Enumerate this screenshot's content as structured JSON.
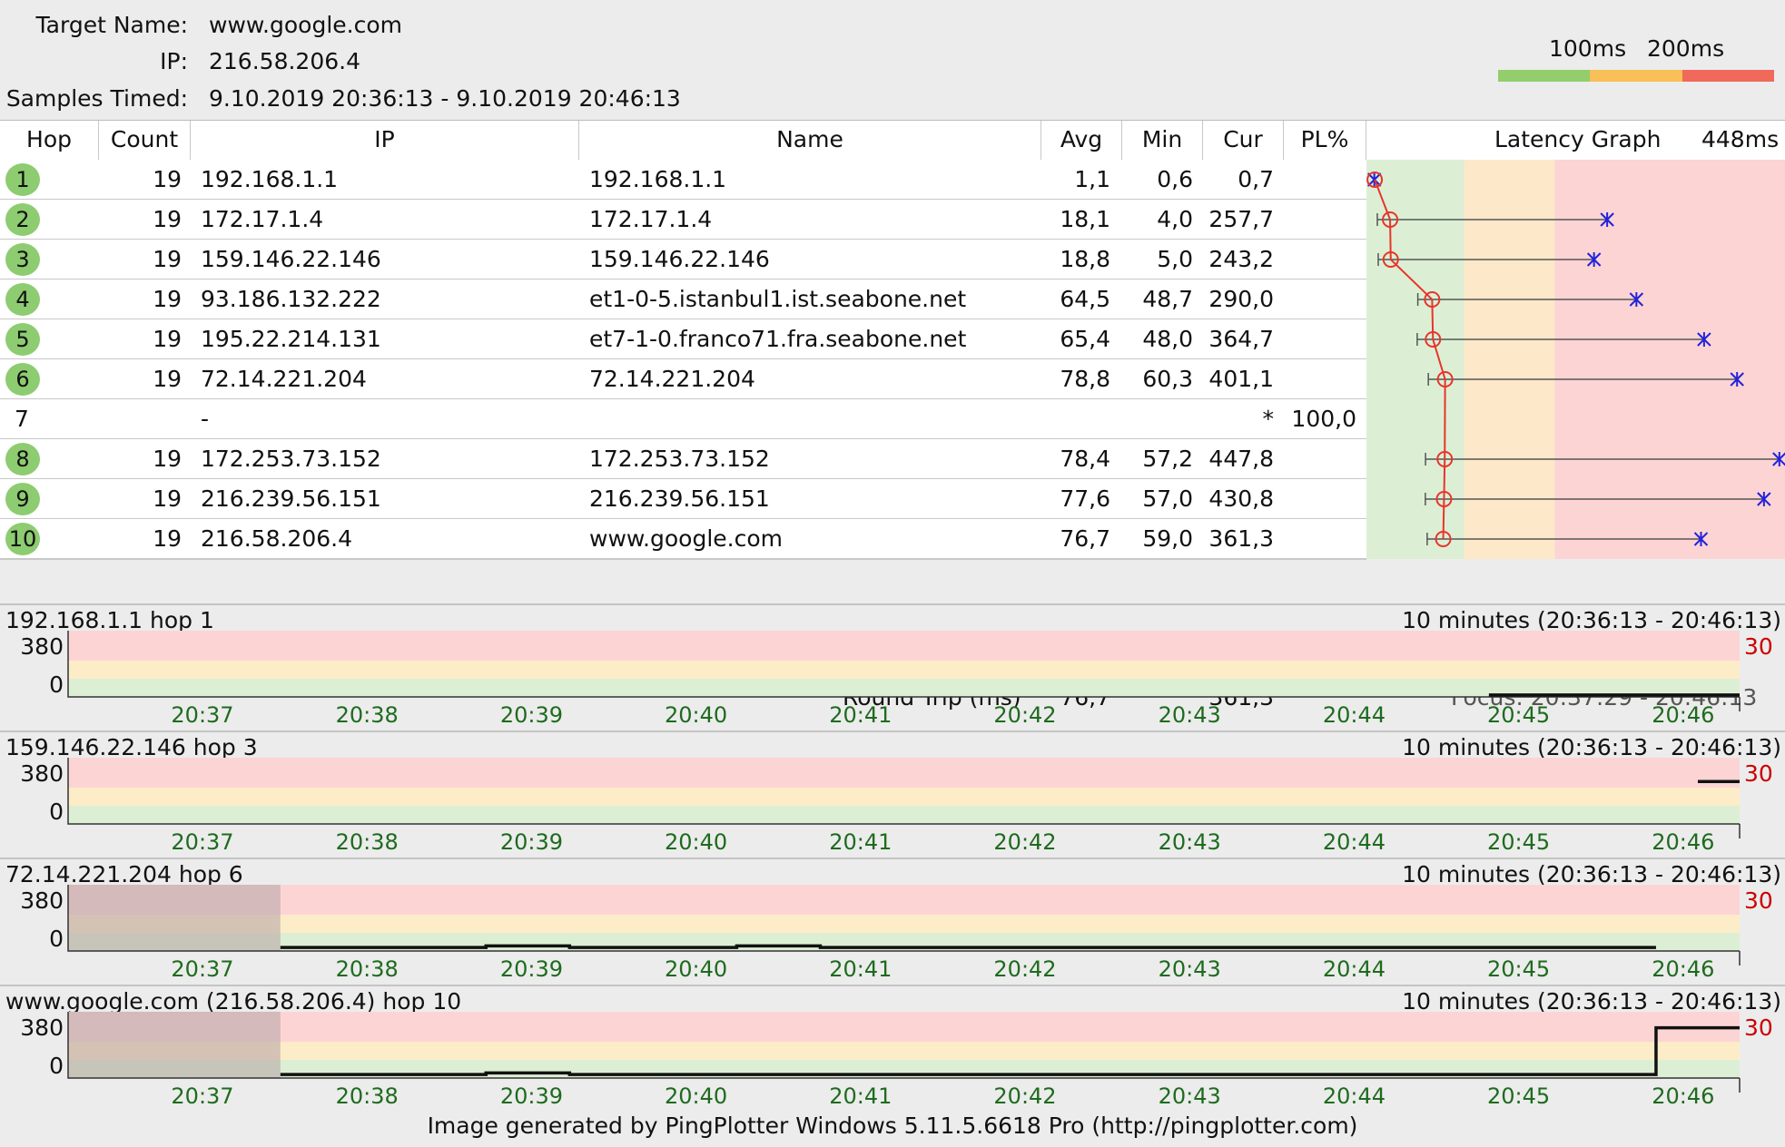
{
  "header": {
    "target_label": "Target Name:",
    "target_value": "www.google.com",
    "ip_label": "IP:",
    "ip_value": "216.58.206.4",
    "samples_label": "Samples Timed:",
    "samples_value": "9.10.2019 20:36:13 - 9.10.2019 20:46:13",
    "legend_100": "100ms",
    "legend_200": "200ms",
    "legend_colors": [
      "#93cd6c",
      "#f8c056",
      "#f0695b"
    ]
  },
  "table": {
    "columns": [
      "Hop",
      "Count",
      "IP",
      "Name",
      "Avg",
      "Min",
      "Cur",
      "PL%",
      "Latency Graph"
    ],
    "graph_max_label": "448ms",
    "graph_max_ms": 448,
    "rows": [
      {
        "hop": "1",
        "count": "19",
        "ip": "192.168.1.1",
        "name": "192.168.1.1",
        "avg": "1,1",
        "min": "0,6",
        "cur": "0,7",
        "pl": "",
        "responded": true
      },
      {
        "hop": "2",
        "count": "19",
        "ip": "172.17.1.4",
        "name": "172.17.1.4",
        "avg": "18,1",
        "min": "4,0",
        "cur": "257,7",
        "pl": "",
        "responded": true
      },
      {
        "hop": "3",
        "count": "19",
        "ip": "159.146.22.146",
        "name": "159.146.22.146",
        "avg": "18,8",
        "min": "5,0",
        "cur": "243,2",
        "pl": "",
        "responded": true
      },
      {
        "hop": "4",
        "count": "19",
        "ip": "93.186.132.222",
        "name": "et1-0-5.istanbul1.ist.seabone.net",
        "avg": "64,5",
        "min": "48,7",
        "cur": "290,0",
        "pl": "",
        "responded": true
      },
      {
        "hop": "5",
        "count": "19",
        "ip": "195.22.214.131",
        "name": "et7-1-0.franco71.fra.seabone.net",
        "avg": "65,4",
        "min": "48,0",
        "cur": "364,7",
        "pl": "",
        "responded": true
      },
      {
        "hop": "6",
        "count": "19",
        "ip": "72.14.221.204",
        "name": "72.14.221.204",
        "avg": "78,8",
        "min": "60,3",
        "cur": "401,1",
        "pl": "",
        "responded": true
      },
      {
        "hop": "7",
        "count": "",
        "ip": "-",
        "name": "",
        "avg": "",
        "min": "",
        "cur": "*",
        "pl": "100,0",
        "responded": false
      },
      {
        "hop": "8",
        "count": "19",
        "ip": "172.253.73.152",
        "name": "172.253.73.152",
        "avg": "78,4",
        "min": "57,2",
        "cur": "447,8",
        "pl": "",
        "responded": true
      },
      {
        "hop": "9",
        "count": "19",
        "ip": "216.239.56.151",
        "name": "216.239.56.151",
        "avg": "77,6",
        "min": "57,0",
        "cur": "430,8",
        "pl": "",
        "responded": true
      },
      {
        "hop": "10",
        "count": "19",
        "ip": "216.58.206.4",
        "name": "www.google.com",
        "avg": "76,7",
        "min": "59,0",
        "cur": "361,3",
        "pl": "",
        "responded": true
      }
    ],
    "roundtrip_label": "Round Trip (ms)",
    "roundtrip_avg": "76,7",
    "roundtrip_cur": "361,3",
    "focus_text": "Focus: 20:37:29 - 20:46:13"
  },
  "timeline_ticks": [
    "20:37",
    "20:38",
    "20:39",
    "20:40",
    "20:41",
    "20:42",
    "20:43",
    "20:44",
    "20:45",
    "20:46"
  ],
  "charts": [
    {
      "title": "192.168.1.1 hop 1",
      "range": "10 minutes (20:36:13 - 20:46:13)",
      "y_top": "380",
      "y_bottom": "0",
      "right_label": "30",
      "shaded_until_min": 0,
      "series": [
        [
          8.5,
          1
        ],
        [
          10,
          1
        ]
      ]
    },
    {
      "title": "159.146.22.146 hop 3",
      "range": "10 minutes (20:36:13 - 20:46:13)",
      "y_top": "380",
      "y_bottom": "0",
      "right_label": "30",
      "shaded_until_min": 0,
      "series": [
        [
          9.75,
          243
        ],
        [
          10,
          243
        ]
      ]
    },
    {
      "title": "72.14.221.204 hop 6",
      "range": "10 minutes (20:36:13 - 20:46:13)",
      "y_top": "380",
      "y_bottom": "0",
      "right_label": "30",
      "shaded_until_min": 1.27,
      "series": [
        [
          1.27,
          10
        ],
        [
          2.5,
          10
        ],
        [
          2.5,
          20
        ],
        [
          3.0,
          20
        ],
        [
          3.0,
          10
        ],
        [
          4.0,
          10
        ],
        [
          4.0,
          20
        ],
        [
          4.5,
          20
        ],
        [
          4.5,
          10
        ],
        [
          9.5,
          10
        ]
      ]
    },
    {
      "title": "www.google.com (216.58.206.4) hop 10",
      "range": "10 minutes (20:36:13 - 20:46:13)",
      "y_top": "380",
      "y_bottom": "0",
      "right_label": "30",
      "shaded_until_min": 1.27,
      "series": [
        [
          1.27,
          10
        ],
        [
          2.5,
          10
        ],
        [
          2.5,
          20
        ],
        [
          3.0,
          20
        ],
        [
          3.0,
          10
        ],
        [
          9.5,
          10
        ],
        [
          9.5,
          290
        ],
        [
          10,
          290
        ]
      ]
    }
  ],
  "footer": "Image generated by PingPlotter Windows 5.11.5.6618 Pro (http://pingplotter.com)"
}
